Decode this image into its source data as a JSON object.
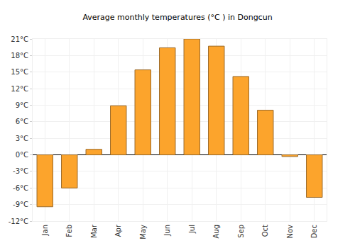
{
  "chart_data": {
    "type": "bar",
    "title": "Average monthly temperatures (°C ) in Dongcun",
    "categories": [
      "Jan",
      "Feb",
      "Mar",
      "Apr",
      "May",
      "Jun",
      "Jul",
      "Aug",
      "Sep",
      "Oct",
      "Nov",
      "Dec"
    ],
    "values": [
      -9.4,
      -6.0,
      1.0,
      8.9,
      15.4,
      19.4,
      21.0,
      19.7,
      14.2,
      8.1,
      -0.3,
      -7.7
    ],
    "color": "#fca42c",
    "ylim": [
      -12,
      21
    ],
    "yticks": [
      {
        "value": -12,
        "label": "-12°C"
      },
      {
        "value": -9,
        "label": "-9°C"
      },
      {
        "value": -6,
        "label": "-6°C"
      },
      {
        "value": -3,
        "label": "-3°C"
      },
      {
        "value": 0,
        "label": "0°C"
      },
      {
        "value": 3,
        "label": "3°C"
      },
      {
        "value": 6,
        "label": "6°C"
      },
      {
        "value": 9,
        "label": "9°C"
      },
      {
        "value": 12,
        "label": "12°C"
      },
      {
        "value": 15,
        "label": "15°C"
      },
      {
        "value": 18,
        "label": "18°C"
      },
      {
        "value": 21,
        "label": "21°C"
      }
    ],
    "grid": true
  }
}
